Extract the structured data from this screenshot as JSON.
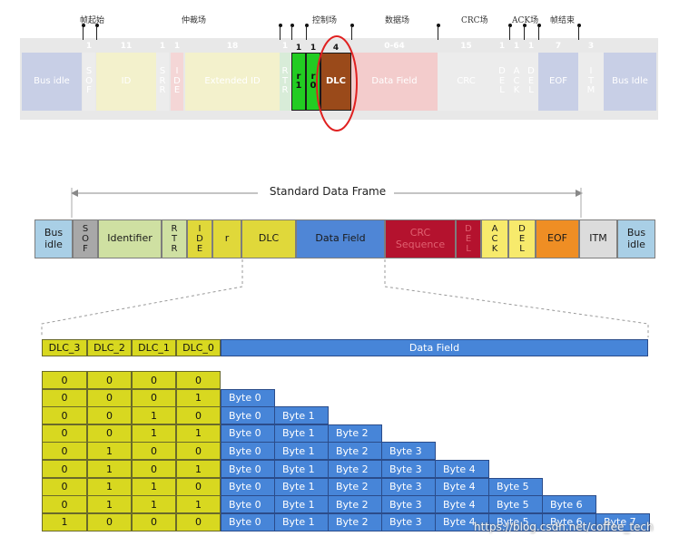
{
  "top_frame": {
    "chinese_labels": [
      "帧起始",
      "仲裁场",
      "控制场",
      "数据场",
      "CRC场",
      "ACK场",
      "帧结束"
    ],
    "fields": [
      {
        "label": "Bus idle",
        "bits": ""
      },
      {
        "label": "S\nO\nF",
        "bits": "1"
      },
      {
        "label": "ID",
        "bits": "11"
      },
      {
        "label": "S\nR\nR",
        "bits": "1"
      },
      {
        "label": "I\nD\nE",
        "bits": "1"
      },
      {
        "label": "Extended ID",
        "bits": "18"
      },
      {
        "label": "R\nT\nR",
        "bits": "1"
      },
      {
        "label": "r\n1",
        "bits": "1"
      },
      {
        "label": "r\n0",
        "bits": "1"
      },
      {
        "label": "DLC",
        "bits": "4"
      },
      {
        "label": "Data Field",
        "bits": "0-64"
      },
      {
        "label": "CRC",
        "bits": "15"
      },
      {
        "label": "D\nE\nL",
        "bits": "1"
      },
      {
        "label": "A\nC\nK",
        "bits": "1"
      },
      {
        "label": "D\nE\nL",
        "bits": "1"
      },
      {
        "label": "EOF",
        "bits": "7"
      },
      {
        "label": "I\nT\nM",
        "bits": "3"
      },
      {
        "label": "Bus Idle",
        "bits": ""
      }
    ]
  },
  "standard_frame": {
    "title": "Standard Data Frame",
    "fields": [
      {
        "label": "Bus\nidle",
        "color": "#a9cfe6"
      },
      {
        "label": "S\nO\nF",
        "color": "#a8a8a8"
      },
      {
        "label": "Identifier",
        "color": "#cfe0a2"
      },
      {
        "label": "R\nT\nR",
        "color": "#cfe0a2"
      },
      {
        "label": "I\nD\nE",
        "color": "#e0d83a"
      },
      {
        "label": "r",
        "color": "#e0d83a"
      },
      {
        "label": "DLC",
        "color": "#e0d83a"
      },
      {
        "label": "Data Field",
        "color": "#4f86d6"
      },
      {
        "label": "CRC\nSequence",
        "color": "#b4122e"
      },
      {
        "label": "D\nE\nL",
        "color": "#b4122e"
      },
      {
        "label": "A\nC\nK",
        "color": "#f7ea6c"
      },
      {
        "label": "D\nE\nL",
        "color": "#f7ea6c"
      },
      {
        "label": "EOF",
        "color": "#ef8e24"
      },
      {
        "label": "ITM",
        "color": "#dcdcdc"
      },
      {
        "label": "Bus\nidle",
        "color": "#a9cfe6"
      }
    ]
  },
  "dlc_table": {
    "headers": [
      "DLC_3",
      "DLC_2",
      "DLC_1",
      "DLC_0"
    ],
    "data_header": "Data Field",
    "rows": [
      {
        "bits": [
          "0",
          "0",
          "0",
          "0"
        ],
        "bytes": []
      },
      {
        "bits": [
          "0",
          "0",
          "0",
          "1"
        ],
        "bytes": [
          "Byte 0"
        ]
      },
      {
        "bits": [
          "0",
          "0",
          "1",
          "0"
        ],
        "bytes": [
          "Byte 0",
          "Byte 1"
        ]
      },
      {
        "bits": [
          "0",
          "0",
          "1",
          "1"
        ],
        "bytes": [
          "Byte 0",
          "Byte 1",
          "Byte 2"
        ]
      },
      {
        "bits": [
          "0",
          "1",
          "0",
          "0"
        ],
        "bytes": [
          "Byte 0",
          "Byte 1",
          "Byte 2",
          "Byte 3"
        ]
      },
      {
        "bits": [
          "0",
          "1",
          "0",
          "1"
        ],
        "bytes": [
          "Byte 0",
          "Byte 1",
          "Byte 2",
          "Byte 3",
          "Byte 4"
        ]
      },
      {
        "bits": [
          "0",
          "1",
          "1",
          "0"
        ],
        "bytes": [
          "Byte 0",
          "Byte 1",
          "Byte 2",
          "Byte 3",
          "Byte 4",
          "Byte 5"
        ]
      },
      {
        "bits": [
          "0",
          "1",
          "1",
          "1"
        ],
        "bytes": [
          "Byte 0",
          "Byte 1",
          "Byte 2",
          "Byte 3",
          "Byte 4",
          "Byte 5",
          "Byte 6"
        ]
      },
      {
        "bits": [
          "1",
          "0",
          "0",
          "0"
        ],
        "bytes": [
          "Byte 0",
          "Byte 1",
          "Byte 2",
          "Byte 3",
          "Byte 4",
          "Byte 5",
          "Byte 6",
          "Byte 7"
        ]
      }
    ]
  },
  "watermark": "https://blog.csdn.net/coffee_tech",
  "colors": {
    "dlc_cell": "#d8d820",
    "byte_cell": "#4785d8",
    "highlight_green": "#22cc22",
    "highlight_dlc": "#9a4a1a",
    "circle": "#e02020"
  }
}
